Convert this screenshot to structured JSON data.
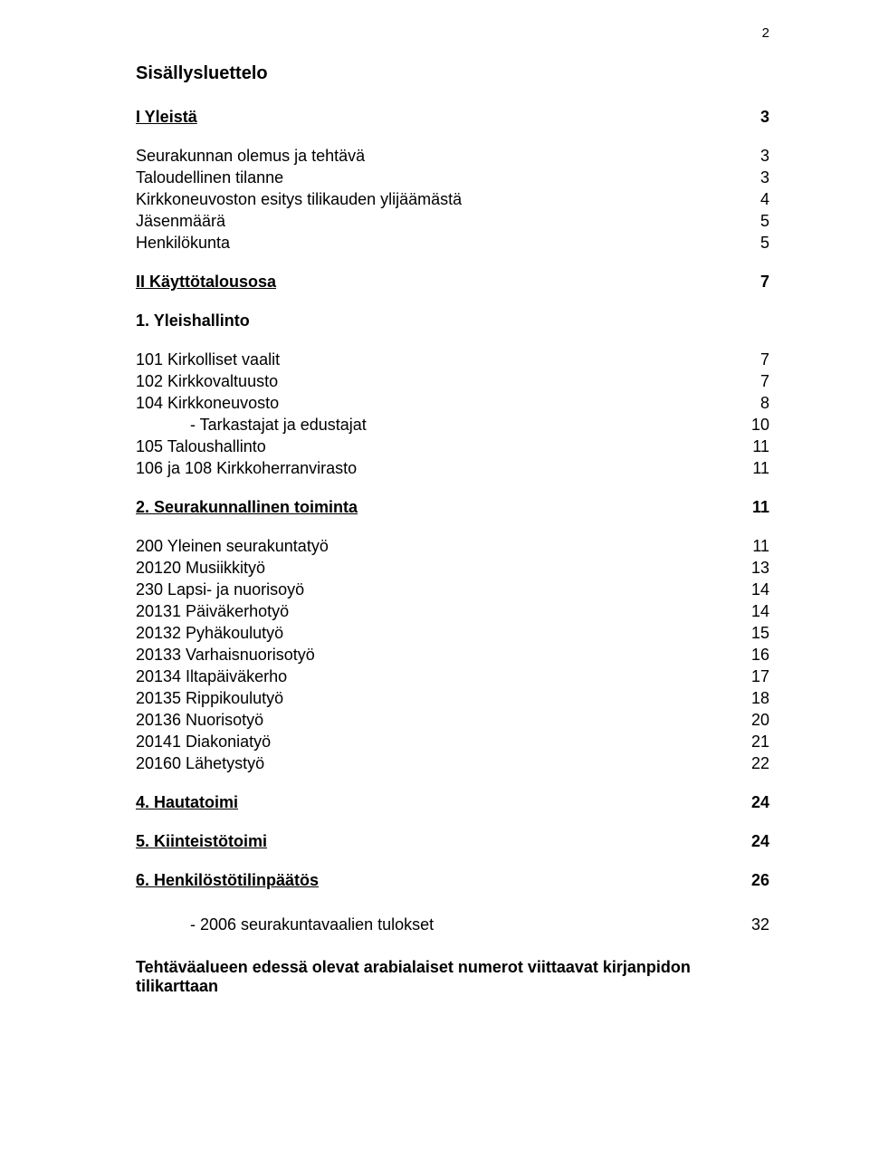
{
  "page_number": "2",
  "title": "Sisällysluettelo",
  "entries": [
    {
      "label": "I Yleistä",
      "page": "3",
      "bold": true,
      "underline": true,
      "gap": "none"
    },
    {
      "label": "Seurakunnan olemus ja tehtävä",
      "page": "3",
      "gap": "lg"
    },
    {
      "label": "Taloudellinen tilanne",
      "page": "3"
    },
    {
      "label": "Kirkkoneuvoston esitys tilikauden ylijäämästä",
      "page": "4"
    },
    {
      "label": "Jäsenmäärä",
      "page": "5"
    },
    {
      "label": "Henkilökunta",
      "page": "5"
    },
    {
      "label": "II Käyttötalousosa",
      "page": "7",
      "bold": true,
      "underline": true,
      "gap": "lg"
    },
    {
      "label": "1. Yleishallinto",
      "page": "",
      "bold": true,
      "gap": "lg"
    },
    {
      "label": "101 Kirkolliset vaalit",
      "page": "7",
      "gap": "lg"
    },
    {
      "label": "102 Kirkkovaltuusto",
      "page": "7"
    },
    {
      "label": "104 Kirkkoneuvosto",
      "page": "8"
    },
    {
      "label": "- Tarkastajat ja edustajat",
      "page": "10",
      "indent": true
    },
    {
      "label": "105 Taloushallinto",
      "page": "11"
    },
    {
      "label": "106 ja 108 Kirkkoherranvirasto",
      "page": "11"
    },
    {
      "label": "2. Seurakunnallinen toiminta",
      "page": "11",
      "bold": true,
      "underline": true,
      "gap": "lg"
    },
    {
      "label": "200 Yleinen seurakuntatyö",
      "page": "11",
      "gap": "lg"
    },
    {
      "label": "20120 Musiikkityö",
      "page": "13"
    },
    {
      "label": "230 Lapsi- ja nuorisoyö",
      "page": "14"
    },
    {
      "label": "20131 Päiväkerhotyö",
      "page": "14"
    },
    {
      "label": "20132 Pyhäkoulutyö",
      "page": "15"
    },
    {
      "label": "20133 Varhaisnuorisotyö",
      "page": "16"
    },
    {
      "label": "20134 Iltapäiväkerho",
      "page": "17"
    },
    {
      "label": "20135 Rippikoulutyö",
      "page": "18"
    },
    {
      "label": "20136 Nuorisotyö",
      "page": "20"
    },
    {
      "label": "20141 Diakoniatyö",
      "page": "21"
    },
    {
      "label": "20160 Lähetystyö",
      "page": "22"
    },
    {
      "label": "4. Hautatoimi",
      "page": "24",
      "bold": true,
      "underline": true,
      "gap": "lg"
    },
    {
      "label": "5. Kiinteistötoimi",
      "page": "24",
      "bold": true,
      "underline": true,
      "gap": "lg"
    },
    {
      "label": "6. Henkilöstötilinpäätös",
      "page": "26",
      "bold": true,
      "underline": true,
      "gap": "lg"
    },
    {
      "label": "- 2006 seurakuntavaalien tulokset",
      "page": "32",
      "indent": true,
      "gap": "lg2"
    }
  ],
  "footer": "Tehtäväalueen edessä olevat arabialaiset numerot viittaavat kirjanpidon tilikarttaan"
}
